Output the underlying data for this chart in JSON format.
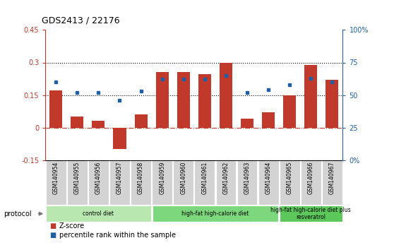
{
  "title": "GDS2413 / 22176",
  "samples": [
    "GSM140954",
    "GSM140955",
    "GSM140956",
    "GSM140957",
    "GSM140958",
    "GSM140959",
    "GSM140960",
    "GSM140961",
    "GSM140962",
    "GSM140963",
    "GSM140964",
    "GSM140965",
    "GSM140966",
    "GSM140967"
  ],
  "zscore": [
    0.17,
    0.05,
    0.03,
    -0.1,
    0.06,
    0.255,
    0.255,
    0.245,
    0.3,
    0.04,
    0.07,
    0.15,
    0.29,
    0.22
  ],
  "percentile": [
    60,
    52,
    52,
    46,
    53,
    62,
    62,
    62,
    65,
    52,
    54,
    58,
    63,
    60
  ],
  "bar_color": "#c0392b",
  "dot_color": "#1f5fa6",
  "ylim_left": [
    -0.15,
    0.45
  ],
  "ylim_right": [
    0,
    100
  ],
  "yticks_left": [
    -0.15,
    0,
    0.15,
    0.3,
    0.45
  ],
  "yticks_right": [
    0,
    25,
    50,
    75,
    100
  ],
  "ytick_labels_left": [
    "-0.15",
    "0",
    "0.15",
    "0.3",
    "0.45"
  ],
  "ytick_labels_right": [
    "0%",
    "25",
    "50",
    "75",
    "100%"
  ],
  "hlines": [
    0.15,
    0.3
  ],
  "groups": [
    {
      "label": "control diet",
      "start": 0,
      "end": 5,
      "color": "#b8e8b0"
    },
    {
      "label": "high-fat high-calorie diet",
      "start": 5,
      "end": 11,
      "color": "#7dd87d"
    },
    {
      "label": "high-fat high-calorie diet plus\nresveratrol",
      "start": 11,
      "end": 14,
      "color": "#5cc85c"
    }
  ],
  "protocol_label": "protocol",
  "legend_zscore": "Z-score",
  "legend_percentile": "percentile rank within the sample",
  "bg_color": "#ffffff",
  "zero_line_color": "#c0392b",
  "hline_color": "#000000",
  "sample_box_color": "#d3d3d3",
  "sample_box_border": "#aaaaaa"
}
